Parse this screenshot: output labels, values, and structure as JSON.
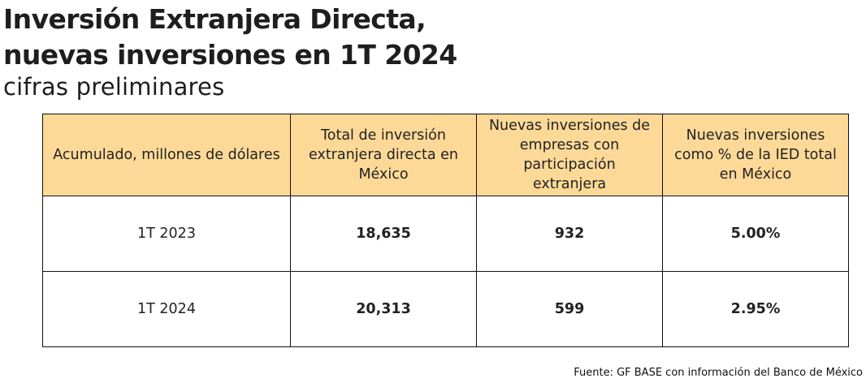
{
  "title_lines": [
    "Inversión Extranjera Directa,",
    "nuevas inversiones en 1T 2024"
  ],
  "subtitle": "cifras preliminares",
  "chart_data": {
    "type": "table",
    "columns": [
      "Acumulado, millones de dólares",
      "Total de inversión extranjera directa en México",
      "Nuevas inversiones de empresas con participación extranjera",
      "Nuevas inversiones como % de la IED total en México"
    ],
    "rows": [
      {
        "label": "1T 2023",
        "values": [
          "18,635",
          "932",
          "5.00%"
        ]
      },
      {
        "label": "1T 2024",
        "values": [
          "20,313",
          "599",
          "2.95%"
        ]
      }
    ]
  },
  "colors": {
    "header_background": "#fdd998",
    "border": "#111111"
  },
  "source": "Fuente: GF BASE con información del Banco de México"
}
